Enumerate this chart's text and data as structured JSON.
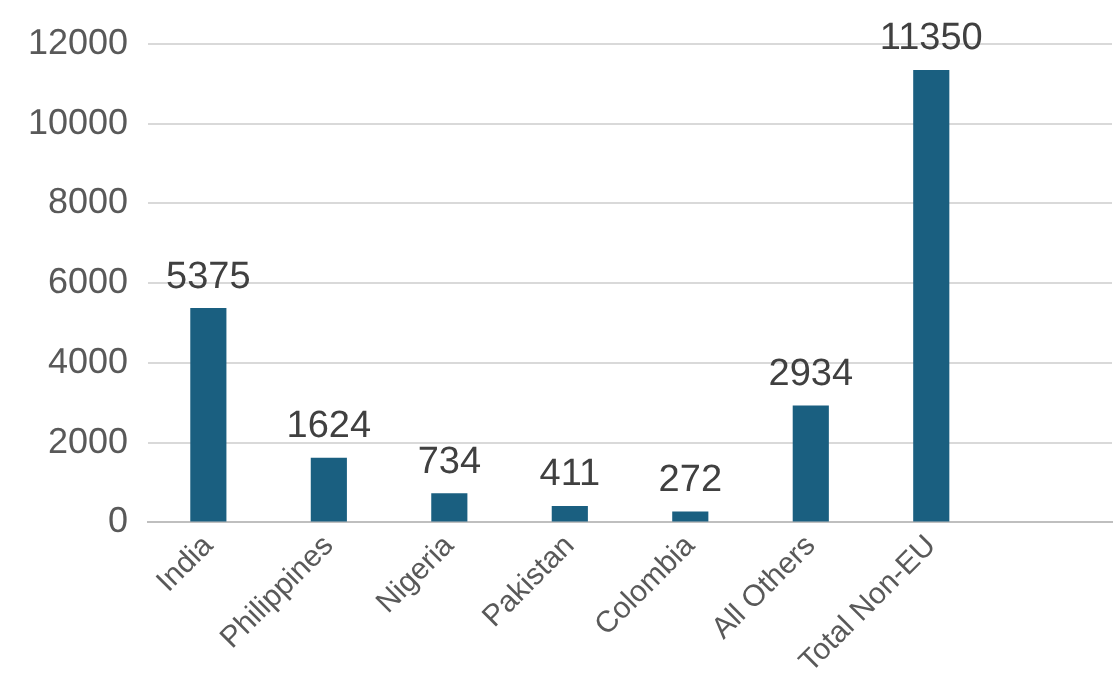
{
  "chart_data": {
    "type": "bar",
    "categories": [
      "India",
      "Philippines",
      "Nigeria",
      "Pakistan",
      "Colombia",
      "All Others",
      "Total Non-EU",
      null
    ],
    "values": [
      5375,
      1624,
      734,
      411,
      272,
      2934,
      11350,
      null
    ],
    "color": "#1a5f80",
    "ylim": [
      0,
      12000
    ],
    "yticks": [
      0,
      2000,
      4000,
      6000,
      8000,
      10000,
      12000
    ],
    "grid": "y",
    "data_labels": true,
    "legend": false
  }
}
